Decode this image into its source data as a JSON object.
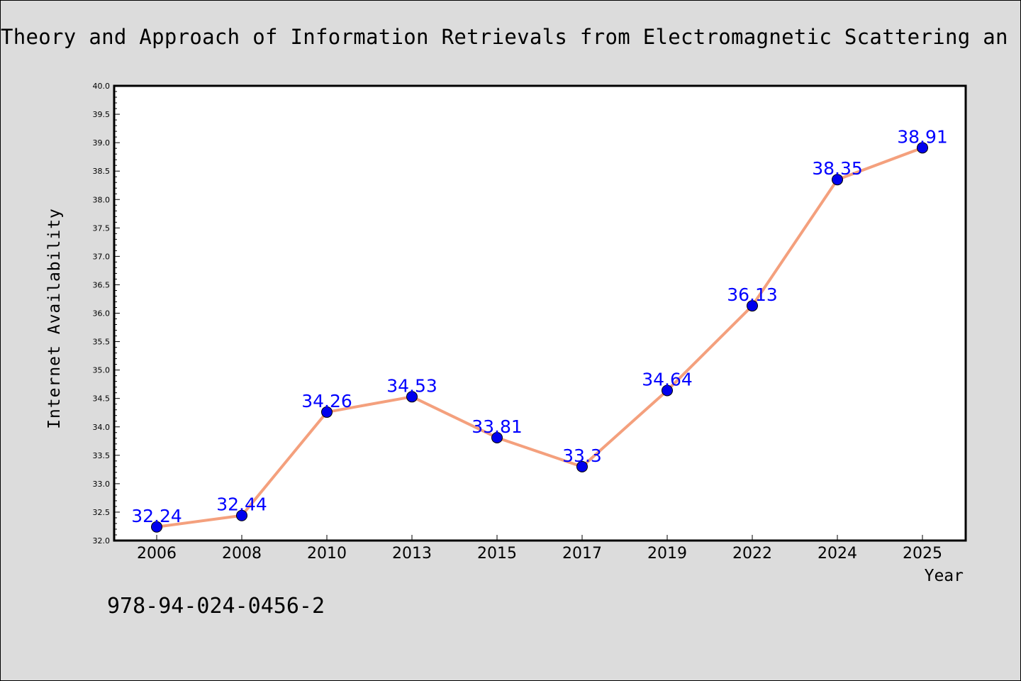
{
  "chart_data": {
    "type": "line",
    "title": "Theory and Approach of Information Retrievals from Electromagnetic Scattering an",
    "xlabel": "Year",
    "ylabel": "Internet Availability",
    "categories": [
      "2006",
      "2008",
      "2010",
      "2013",
      "2015",
      "2017",
      "2019",
      "2022",
      "2024",
      "2025"
    ],
    "series": [
      {
        "values": [
          32.24,
          32.44,
          34.26,
          34.53,
          33.81,
          33.3,
          34.64,
          36.13,
          38.35,
          38.91
        ],
        "data_labels": [
          "32.24",
          "32.44",
          "34.26",
          "34.53",
          "33.81",
          "33.3",
          "34.64",
          "36.13",
          "38.35",
          "38.91"
        ],
        "line_color": "#f4a07d",
        "marker_color": "#0000ee",
        "label_color": "#0000ff"
      }
    ],
    "ylim": [
      32.0,
      40.0
    ],
    "yticks": [
      "32.0",
      "32.5",
      "33.0",
      "33.5",
      "34.0",
      "34.5",
      "35.0",
      "35.5",
      "36.0",
      "36.5",
      "37.0",
      "37.5",
      "38.0",
      "38.5",
      "39.0",
      "39.5",
      "40.0"
    ],
    "grid": false,
    "legend": "none"
  },
  "footer": {
    "isbn": "978-94-024-0456-2"
  },
  "colors": {
    "background": "#dcdcdc",
    "plot_background": "#ffffff",
    "line": "#f4a07d",
    "marker": "#0000ee",
    "data_label": "#0000ff"
  }
}
